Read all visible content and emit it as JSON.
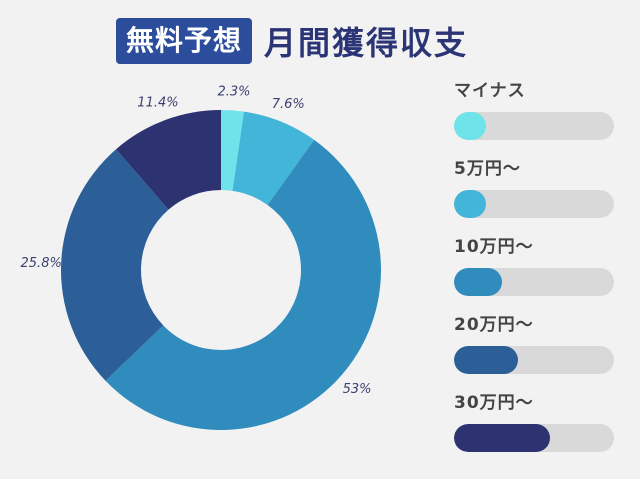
{
  "header": {
    "badge": "無料予想",
    "title": "月間獲得収支"
  },
  "chart_data": {
    "type": "pie",
    "categories": [
      "マイナス",
      "5万円〜",
      "10万円〜",
      "20万円〜",
      "30万円〜"
    ],
    "values": [
      2.3,
      7.6,
      53,
      25.8,
      11.4
    ],
    "labels": [
      "2.3%",
      "7.6%",
      "53%",
      "25.8%",
      "11.4%"
    ],
    "colors": [
      "#6ee3ea",
      "#42b5d8",
      "#2f8cbd",
      "#2c5f98",
      "#2d3370"
    ],
    "legend_fill": [
      0.2,
      0.2,
      0.3,
      0.4,
      0.6
    ],
    "legend": "right"
  }
}
